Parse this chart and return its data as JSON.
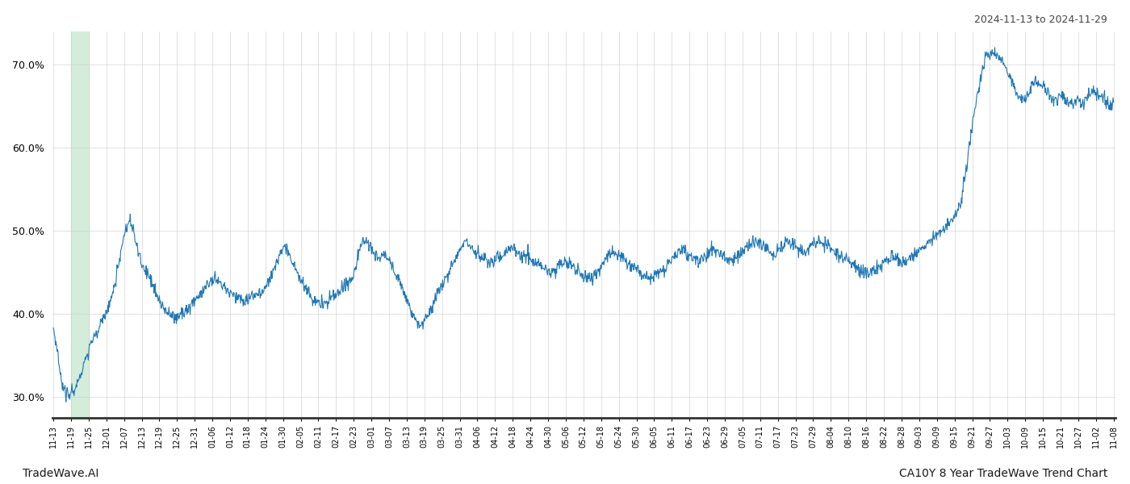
{
  "title_right": "2024-11-13 to 2024-11-29",
  "footer_left": "TradeWave.AI",
  "footer_right": "CA10Y 8 Year TradeWave Trend Chart",
  "line_color": "#1f77b4",
  "line_width": 0.8,
  "highlight_color": "#d4edda",
  "background_color": "#ffffff",
  "grid_color": "#cccccc",
  "ylim": [
    27.5,
    74.0
  ],
  "yticks": [
    30.0,
    40.0,
    50.0,
    60.0,
    70.0
  ],
  "xtick_labels": [
    "11-13",
    "11-19",
    "11-25",
    "12-01",
    "12-07",
    "12-13",
    "12-19",
    "12-25",
    "12-31",
    "01-06",
    "01-12",
    "01-18",
    "01-24",
    "01-30",
    "02-05",
    "02-11",
    "02-17",
    "02-23",
    "03-01",
    "03-07",
    "03-13",
    "03-19",
    "03-25",
    "03-31",
    "04-06",
    "04-12",
    "04-18",
    "04-24",
    "04-30",
    "05-06",
    "05-12",
    "05-18",
    "05-24",
    "05-30",
    "06-05",
    "06-11",
    "06-17",
    "06-23",
    "06-29",
    "07-05",
    "07-11",
    "07-17",
    "07-23",
    "07-29",
    "08-04",
    "08-10",
    "08-16",
    "08-22",
    "08-28",
    "09-03",
    "09-09",
    "09-15",
    "09-21",
    "09-27",
    "10-03",
    "10-09",
    "10-15",
    "10-21",
    "10-27",
    "11-02",
    "11-08"
  ],
  "seed": 42
}
